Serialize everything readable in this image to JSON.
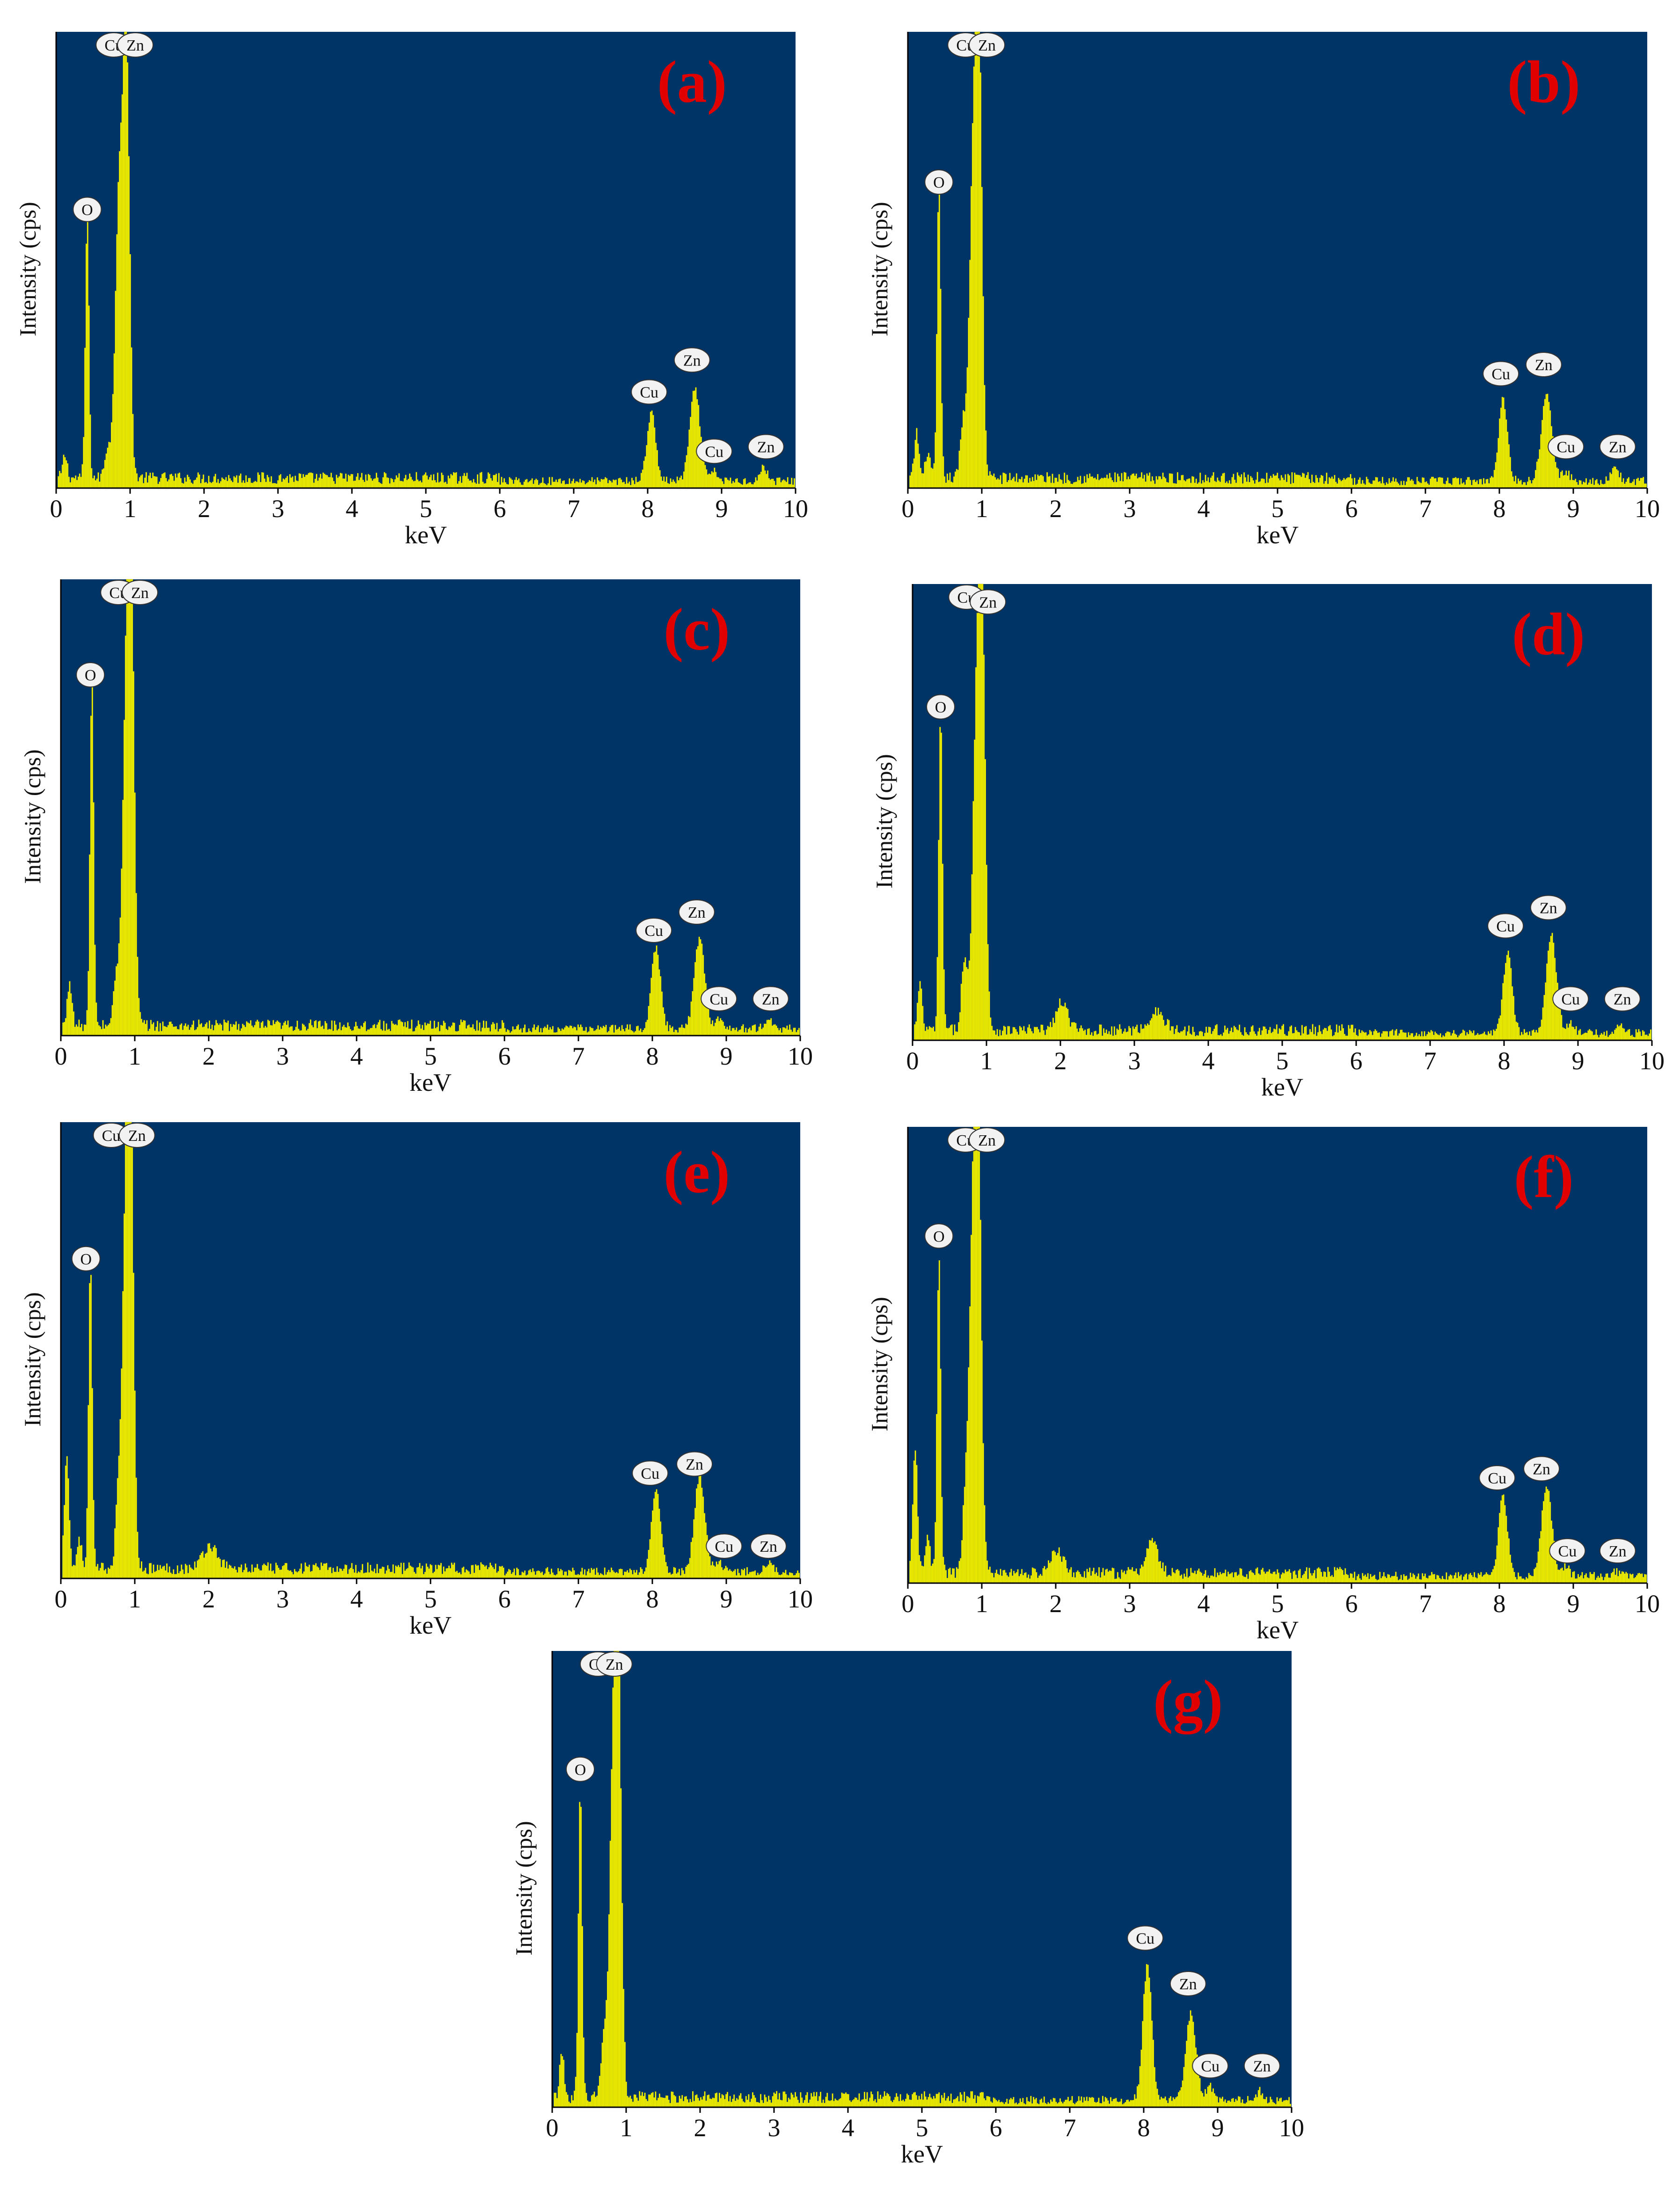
{
  "colors": {
    "plot_background": "#003366",
    "spectrum": "#ffff00",
    "spectrum_edge": "#b8b800",
    "panel_label": "#e00000",
    "peak_label_fill": "#f2f2f2",
    "axis": "#000000"
  },
  "chart_data": [
    {
      "panel": "(a)",
      "type": "bar",
      "xlabel": "keV",
      "ylabel": "Intensity (cps)",
      "xlim": [
        0,
        10
      ],
      "ylim": [
        0,
        1
      ],
      "xticks": [
        "0",
        "1",
        "2",
        "3",
        "4",
        "5",
        "6",
        "7",
        "8",
        "9",
        "10"
      ],
      "grid": false,
      "legend": "none",
      "baseline": 0.022,
      "peaks": [
        {
          "x": 0.12,
          "y": 0.05,
          "w": 0.03
        },
        {
          "x": 0.42,
          "y": 0.58,
          "w": 0.025
        },
        {
          "x": 0.7,
          "y": 0.07,
          "w": 0.04
        },
        {
          "x": 0.85,
          "y": 0.62,
          "w": 0.05
        },
        {
          "x": 0.95,
          "y": 0.93,
          "w": 0.045
        },
        {
          "x": 8.05,
          "y": 0.15,
          "w": 0.06
        },
        {
          "x": 8.64,
          "y": 0.2,
          "w": 0.07
        },
        {
          "x": 8.9,
          "y": 0.02,
          "w": 0.05
        },
        {
          "x": 9.57,
          "y": 0.03,
          "w": 0.05
        }
      ],
      "annotations": [
        {
          "text": "O",
          "x": 0.42,
          "y": 0.58
        },
        {
          "text": "Cu",
          "x": 0.78,
          "y": 0.98
        },
        {
          "text": "Zn",
          "x": 1.07,
          "y": 0.95
        },
        {
          "text": "Cu",
          "x": 8.02,
          "y": 0.18
        },
        {
          "text": "Zn",
          "x": 8.6,
          "y": 0.25
        },
        {
          "text": "Cu",
          "x": 8.9,
          "y": 0.05
        },
        {
          "text": "Zn",
          "x": 9.6,
          "y": 0.06
        }
      ]
    },
    {
      "panel": "(b)",
      "type": "bar",
      "xlabel": "keV",
      "ylabel": "Intensity (cps)",
      "xlim": [
        0,
        10
      ],
      "ylim": [
        0,
        1
      ],
      "xticks": [
        "0",
        "1",
        "2",
        "3",
        "4",
        "5",
        "6",
        "7",
        "8",
        "9",
        "10"
      ],
      "grid": false,
      "legend": "none",
      "baseline": 0.022,
      "peaks": [
        {
          "x": 0.12,
          "y": 0.1,
          "w": 0.03
        },
        {
          "x": 0.27,
          "y": 0.06,
          "w": 0.03
        },
        {
          "x": 0.42,
          "y": 0.64,
          "w": 0.025
        },
        {
          "x": 0.75,
          "y": 0.12,
          "w": 0.04
        },
        {
          "x": 0.88,
          "y": 0.62,
          "w": 0.05
        },
        {
          "x": 0.96,
          "y": 0.93,
          "w": 0.045
        },
        {
          "x": 8.05,
          "y": 0.18,
          "w": 0.06
        },
        {
          "x": 8.64,
          "y": 0.2,
          "w": 0.07
        },
        {
          "x": 8.9,
          "y": 0.02,
          "w": 0.05
        },
        {
          "x": 9.57,
          "y": 0.03,
          "w": 0.05
        }
      ],
      "annotations": [
        {
          "text": "O",
          "x": 0.42,
          "y": 0.64
        },
        {
          "text": "Cu",
          "x": 0.78,
          "y": 0.98
        },
        {
          "text": "Zn",
          "x": 1.07,
          "y": 0.95
        },
        {
          "text": "Cu",
          "x": 8.02,
          "y": 0.22
        },
        {
          "text": "Zn",
          "x": 8.6,
          "y": 0.24
        },
        {
          "text": "Cu",
          "x": 8.9,
          "y": 0.06
        },
        {
          "text": "Zn",
          "x": 9.6,
          "y": 0.06
        }
      ]
    },
    {
      "panel": "(c)",
      "type": "bar",
      "xlabel": "keV",
      "ylabel": "Intensity (cps)",
      "xlim": [
        0,
        10
      ],
      "ylim": [
        0,
        1
      ],
      "xticks": [
        "0",
        "1",
        "2",
        "3",
        "4",
        "5",
        "6",
        "7",
        "8",
        "9",
        "10"
      ],
      "grid": false,
      "legend": "none",
      "baseline": 0.022,
      "peaks": [
        {
          "x": 0.12,
          "y": 0.1,
          "w": 0.03
        },
        {
          "x": 0.42,
          "y": 0.76,
          "w": 0.025
        },
        {
          "x": 0.75,
          "y": 0.1,
          "w": 0.04
        },
        {
          "x": 0.88,
          "y": 0.62,
          "w": 0.05
        },
        {
          "x": 0.95,
          "y": 0.93,
          "w": 0.045
        },
        {
          "x": 8.05,
          "y": 0.18,
          "w": 0.06
        },
        {
          "x": 8.64,
          "y": 0.2,
          "w": 0.07
        },
        {
          "x": 8.9,
          "y": 0.02,
          "w": 0.05
        },
        {
          "x": 9.57,
          "y": 0.02,
          "w": 0.05
        }
      ],
      "annotations": [
        {
          "text": "O",
          "x": 0.4,
          "y": 0.76
        },
        {
          "text": "Cu",
          "x": 0.78,
          "y": 0.98
        },
        {
          "text": "Zn",
          "x": 1.07,
          "y": 0.95
        },
        {
          "text": "Cu",
          "x": 8.02,
          "y": 0.2
        },
        {
          "text": "Zn",
          "x": 8.6,
          "y": 0.24
        },
        {
          "text": "Cu",
          "x": 8.9,
          "y": 0.05
        },
        {
          "text": "Zn",
          "x": 9.6,
          "y": 0.05
        }
      ]
    },
    {
      "panel": "(d)",
      "type": "bar",
      "xlabel": "keV",
      "ylabel": "Intensity (cps)",
      "xlim": [
        0,
        10
      ],
      "ylim": [
        0,
        1
      ],
      "xticks": [
        "0",
        "1",
        "2",
        "3",
        "4",
        "5",
        "6",
        "7",
        "8",
        "9",
        "10"
      ],
      "grid": false,
      "legend": "none",
      "baseline": 0.022,
      "peaks": [
        {
          "x": 0.1,
          "y": 0.1,
          "w": 0.03
        },
        {
          "x": 0.38,
          "y": 0.7,
          "w": 0.025
        },
        {
          "x": 0.7,
          "y": 0.15,
          "w": 0.04
        },
        {
          "x": 0.86,
          "y": 0.62,
          "w": 0.05
        },
        {
          "x": 0.94,
          "y": 0.91,
          "w": 0.045
        },
        {
          "x": 2.02,
          "y": 0.06,
          "w": 0.08
        },
        {
          "x": 3.3,
          "y": 0.04,
          "w": 0.1
        },
        {
          "x": 8.05,
          "y": 0.18,
          "w": 0.06
        },
        {
          "x": 8.64,
          "y": 0.22,
          "w": 0.07
        },
        {
          "x": 8.9,
          "y": 0.02,
          "w": 0.05
        },
        {
          "x": 9.57,
          "y": 0.02,
          "w": 0.05
        }
      ],
      "annotations": [
        {
          "text": "O",
          "x": 0.38,
          "y": 0.7
        },
        {
          "text": "Cu",
          "x": 0.73,
          "y": 0.96
        },
        {
          "text": "Zn",
          "x": 1.02,
          "y": 0.93
        },
        {
          "text": "Cu",
          "x": 8.02,
          "y": 0.22
        },
        {
          "text": "Zn",
          "x": 8.6,
          "y": 0.26
        },
        {
          "text": "Cu",
          "x": 8.9,
          "y": 0.06
        },
        {
          "text": "Zn",
          "x": 9.6,
          "y": 0.06
        }
      ]
    },
    {
      "panel": "(e)",
      "type": "bar",
      "xlabel": "keV",
      "ylabel": "Intensity (cps)",
      "xlim": [
        0,
        10
      ],
      "ylim": [
        0,
        1
      ],
      "xticks": [
        "0",
        "1",
        "2",
        "3",
        "4",
        "5",
        "6",
        "7",
        "8",
        "9",
        "10"
      ],
      "grid": false,
      "legend": "none",
      "baseline": 0.022,
      "peaks": [
        {
          "x": 0.08,
          "y": 0.26,
          "w": 0.03
        },
        {
          "x": 0.25,
          "y": 0.07,
          "w": 0.03
        },
        {
          "x": 0.4,
          "y": 0.67,
          "w": 0.025
        },
        {
          "x": 0.78,
          "y": 0.14,
          "w": 0.04
        },
        {
          "x": 0.88,
          "y": 0.65,
          "w": 0.05
        },
        {
          "x": 0.94,
          "y": 0.93,
          "w": 0.045
        },
        {
          "x": 2.02,
          "y": 0.05,
          "w": 0.1
        },
        {
          "x": 8.05,
          "y": 0.18,
          "w": 0.06
        },
        {
          "x": 8.64,
          "y": 0.21,
          "w": 0.07
        },
        {
          "x": 8.9,
          "y": 0.02,
          "w": 0.05
        },
        {
          "x": 9.57,
          "y": 0.02,
          "w": 0.05
        }
      ],
      "annotations": [
        {
          "text": "O",
          "x": 0.34,
          "y": 0.67
        },
        {
          "text": "Cu",
          "x": 0.68,
          "y": 0.98
        },
        {
          "text": "Zn",
          "x": 1.03,
          "y": 0.95
        },
        {
          "text": "Cu",
          "x": 7.97,
          "y": 0.2
        },
        {
          "text": "Zn",
          "x": 8.57,
          "y": 0.22
        },
        {
          "text": "Cu",
          "x": 8.97,
          "y": 0.04
        },
        {
          "text": "Zn",
          "x": 9.57,
          "y": 0.04
        }
      ]
    },
    {
      "panel": "(f)",
      "type": "bar",
      "xlabel": "keV",
      "ylabel": "Intensity (cps)",
      "xlim": [
        0,
        10
      ],
      "ylim": [
        0,
        1
      ],
      "xticks": [
        "0",
        "1",
        "2",
        "3",
        "4",
        "5",
        "6",
        "7",
        "8",
        "9",
        "10"
      ],
      "grid": false,
      "legend": "none",
      "baseline": 0.022,
      "peaks": [
        {
          "x": 0.1,
          "y": 0.28,
          "w": 0.03
        },
        {
          "x": 0.27,
          "y": 0.09,
          "w": 0.03
        },
        {
          "x": 0.42,
          "y": 0.7,
          "w": 0.025
        },
        {
          "x": 0.78,
          "y": 0.15,
          "w": 0.04
        },
        {
          "x": 0.88,
          "y": 0.66,
          "w": 0.05
        },
        {
          "x": 0.95,
          "y": 0.94,
          "w": 0.045
        },
        {
          "x": 2.02,
          "y": 0.05,
          "w": 0.08
        },
        {
          "x": 3.3,
          "y": 0.07,
          "w": 0.08
        },
        {
          "x": 8.05,
          "y": 0.18,
          "w": 0.06
        },
        {
          "x": 8.64,
          "y": 0.2,
          "w": 0.07
        },
        {
          "x": 8.9,
          "y": 0.02,
          "w": 0.05
        },
        {
          "x": 9.57,
          "y": 0.01,
          "w": 0.05
        }
      ],
      "annotations": [
        {
          "text": "O",
          "x": 0.42,
          "y": 0.73
        },
        {
          "text": "Cu",
          "x": 0.78,
          "y": 1.0
        },
        {
          "text": "Zn",
          "x": 1.07,
          "y": 0.97
        },
        {
          "text": "Cu",
          "x": 7.97,
          "y": 0.2
        },
        {
          "text": "Zn",
          "x": 8.57,
          "y": 0.22
        },
        {
          "text": "Cu",
          "x": 8.92,
          "y": 0.04
        },
        {
          "text": "Zn",
          "x": 9.6,
          "y": 0.04
        }
      ]
    },
    {
      "panel": "(g)",
      "type": "bar",
      "xlabel": "keV",
      "ylabel": "Intensity (cps)",
      "xlim": [
        0,
        10
      ],
      "ylim": [
        0,
        1
      ],
      "xticks": [
        "0",
        "1",
        "2",
        "3",
        "4",
        "5",
        "6",
        "7",
        "8",
        "9",
        "10"
      ],
      "grid": false,
      "legend": "none",
      "baseline": 0.022,
      "peaks": [
        {
          "x": 0.13,
          "y": 0.1,
          "w": 0.03
        },
        {
          "x": 0.38,
          "y": 0.68,
          "w": 0.025
        },
        {
          "x": 0.7,
          "y": 0.12,
          "w": 0.04
        },
        {
          "x": 0.82,
          "y": 0.6,
          "w": 0.05
        },
        {
          "x": 0.89,
          "y": 0.93,
          "w": 0.045
        },
        {
          "x": 8.05,
          "y": 0.3,
          "w": 0.06
        },
        {
          "x": 8.64,
          "y": 0.19,
          "w": 0.07
        },
        {
          "x": 8.9,
          "y": 0.03,
          "w": 0.05
        },
        {
          "x": 9.57,
          "y": 0.02,
          "w": 0.05
        }
      ],
      "annotations": [
        {
          "text": "O",
          "x": 0.38,
          "y": 0.71
        },
        {
          "text": "Cu",
          "x": 0.62,
          "y": 0.95
        },
        {
          "text": "Zn",
          "x": 0.84,
          "y": 0.99
        },
        {
          "text": "Cu",
          "x": 8.02,
          "y": 0.34
        },
        {
          "text": "Zn",
          "x": 8.6,
          "y": 0.24
        },
        {
          "text": "Cu",
          "x": 8.9,
          "y": 0.06
        },
        {
          "text": "Zn",
          "x": 9.6,
          "y": 0.06
        }
      ]
    }
  ]
}
